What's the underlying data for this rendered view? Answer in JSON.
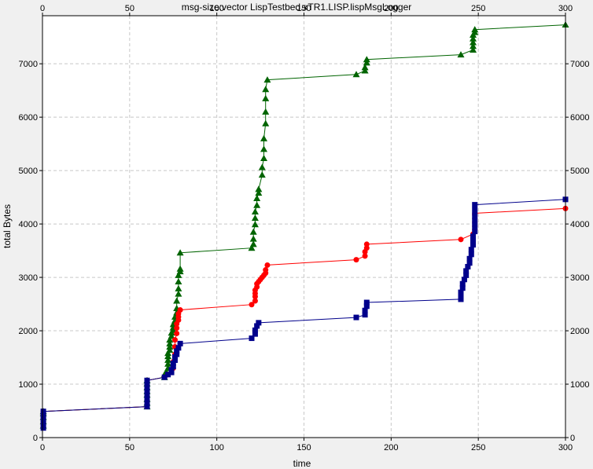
{
  "chart_data": {
    "type": "line",
    "title": "msg-size:vector LispTestbed.xTR1.LISP.lispMsgLogger",
    "xlabel": "time",
    "ylabel": "total Bytes",
    "xlim": [
      0,
      300
    ],
    "ylim": [
      0,
      7900
    ],
    "x_ticks": [
      0,
      50,
      100,
      150,
      200,
      250,
      300
    ],
    "y_ticks": [
      0,
      1000,
      2000,
      3000,
      4000,
      5000,
      6000,
      7000
    ],
    "grid": true,
    "legend": "none",
    "series": [
      {
        "color": "#006400",
        "marker": "triangle",
        "points": [
          [
            0.5,
            220
          ],
          [
            0.5,
            300
          ],
          [
            0.5,
            380
          ],
          [
            0.5,
            450
          ],
          [
            0.5,
            490
          ],
          [
            60,
            580
          ],
          [
            60,
            650
          ],
          [
            60,
            720
          ],
          [
            60,
            800
          ],
          [
            60,
            870
          ],
          [
            60,
            940
          ],
          [
            60,
            1010
          ],
          [
            60,
            1070
          ],
          [
            70,
            1130
          ],
          [
            70,
            1180
          ],
          [
            71,
            1230
          ],
          [
            72,
            1300
          ],
          [
            72,
            1380
          ],
          [
            72,
            1450
          ],
          [
            72,
            1520
          ],
          [
            72,
            1580
          ],
          [
            73,
            1640
          ],
          [
            73,
            1700
          ],
          [
            73,
            1760
          ],
          [
            73,
            1830
          ],
          [
            74,
            1900
          ],
          [
            74,
            1960
          ],
          [
            75,
            2010
          ],
          [
            75,
            2060
          ],
          [
            75,
            2120
          ],
          [
            76,
            2190
          ],
          [
            76,
            2260
          ],
          [
            77,
            2340
          ],
          [
            77,
            2420
          ],
          [
            77,
            2560
          ],
          [
            78,
            2690
          ],
          [
            78,
            2790
          ],
          [
            78,
            2920
          ],
          [
            78,
            3040
          ],
          [
            79,
            3110
          ],
          [
            79,
            3160
          ],
          [
            79,
            3460
          ],
          [
            120,
            3550
          ],
          [
            121,
            3620
          ],
          [
            121,
            3720
          ],
          [
            121,
            3850
          ],
          [
            122,
            3990
          ],
          [
            122,
            4110
          ],
          [
            122,
            4230
          ],
          [
            123,
            4350
          ],
          [
            123,
            4480
          ],
          [
            124,
            4580
          ],
          [
            124,
            4650
          ],
          [
            126,
            4920
          ],
          [
            126,
            5060
          ],
          [
            127,
            5230
          ],
          [
            127,
            5400
          ],
          [
            127,
            5600
          ],
          [
            128,
            5880
          ],
          [
            128,
            6100
          ],
          [
            128,
            6350
          ],
          [
            128,
            6520
          ],
          [
            129,
            6700
          ],
          [
            180,
            6800
          ],
          [
            185,
            6870
          ],
          [
            185,
            6930
          ],
          [
            186,
            7020
          ],
          [
            186,
            7080
          ],
          [
            240,
            7170
          ],
          [
            247,
            7260
          ],
          [
            247,
            7330
          ],
          [
            247,
            7400
          ],
          [
            247,
            7470
          ],
          [
            247,
            7540
          ],
          [
            248,
            7590
          ],
          [
            248,
            7640
          ],
          [
            300,
            7730
          ]
        ]
      },
      {
        "color": "#ff0000",
        "marker": "circle",
        "points": [
          [
            0.5,
            200
          ],
          [
            0.5,
            280
          ],
          [
            0.5,
            360
          ],
          [
            0.5,
            430
          ],
          [
            0.5,
            490
          ],
          [
            60,
            580
          ],
          [
            60,
            650
          ],
          [
            60,
            720
          ],
          [
            60,
            800
          ],
          [
            60,
            870
          ],
          [
            60,
            940
          ],
          [
            60,
            1010
          ],
          [
            60,
            1070
          ],
          [
            70,
            1130
          ],
          [
            72,
            1180
          ],
          [
            74,
            1220
          ],
          [
            75,
            1300
          ],
          [
            75,
            1420
          ],
          [
            76,
            1560
          ],
          [
            76,
            1700
          ],
          [
            76,
            1830
          ],
          [
            77,
            1950
          ],
          [
            77,
            2050
          ],
          [
            77,
            2130
          ],
          [
            78,
            2200
          ],
          [
            78,
            2260
          ],
          [
            78,
            2320
          ],
          [
            79,
            2390
          ],
          [
            120,
            2490
          ],
          [
            122,
            2560
          ],
          [
            122,
            2640
          ],
          [
            122,
            2700
          ],
          [
            122,
            2760
          ],
          [
            123,
            2820
          ],
          [
            123,
            2880
          ],
          [
            124,
            2920
          ],
          [
            125,
            2960
          ],
          [
            126,
            3000
          ],
          [
            127,
            3040
          ],
          [
            128,
            3080
          ],
          [
            128,
            3140
          ],
          [
            129,
            3230
          ],
          [
            180,
            3330
          ],
          [
            185,
            3400
          ],
          [
            185,
            3480
          ],
          [
            186,
            3550
          ],
          [
            186,
            3620
          ],
          [
            240,
            3710
          ],
          [
            247,
            3810
          ],
          [
            248,
            3890
          ],
          [
            248,
            3960
          ],
          [
            248,
            4030
          ],
          [
            248,
            4100
          ],
          [
            248,
            4170
          ],
          [
            248,
            4200
          ],
          [
            300,
            4290
          ]
        ]
      },
      {
        "color": "#00008b",
        "marker": "square",
        "points": [
          [
            0.5,
            180
          ],
          [
            0.5,
            260
          ],
          [
            0.5,
            340
          ],
          [
            0.5,
            420
          ],
          [
            0.5,
            490
          ],
          [
            60,
            580
          ],
          [
            60,
            650
          ],
          [
            60,
            720
          ],
          [
            60,
            800
          ],
          [
            60,
            870
          ],
          [
            60,
            940
          ],
          [
            60,
            1010
          ],
          [
            60,
            1070
          ],
          [
            70,
            1130
          ],
          [
            72,
            1180
          ],
          [
            74,
            1220
          ],
          [
            74,
            1270
          ],
          [
            75,
            1330
          ],
          [
            75,
            1390
          ],
          [
            76,
            1450
          ],
          [
            76,
            1510
          ],
          [
            77,
            1560
          ],
          [
            77,
            1620
          ],
          [
            78,
            1680
          ],
          [
            79,
            1760
          ],
          [
            120,
            1860
          ],
          [
            122,
            1940
          ],
          [
            122,
            2010
          ],
          [
            123,
            2090
          ],
          [
            124,
            2150
          ],
          [
            180,
            2250
          ],
          [
            185,
            2300
          ],
          [
            185,
            2380
          ],
          [
            186,
            2460
          ],
          [
            186,
            2530
          ],
          [
            240,
            2590
          ],
          [
            240,
            2660
          ],
          [
            240,
            2720
          ],
          [
            241,
            2800
          ],
          [
            241,
            2880
          ],
          [
            242,
            2960
          ],
          [
            243,
            3040
          ],
          [
            243,
            3120
          ],
          [
            244,
            3200
          ],
          [
            245,
            3270
          ],
          [
            245,
            3350
          ],
          [
            246,
            3430
          ],
          [
            246,
            3520
          ],
          [
            247,
            3610
          ],
          [
            247,
            3680
          ],
          [
            247,
            3770
          ],
          [
            248,
            3860
          ],
          [
            248,
            3960
          ],
          [
            248,
            4060
          ],
          [
            248,
            4160
          ],
          [
            248,
            4260
          ],
          [
            248,
            4360
          ],
          [
            300,
            4460
          ]
        ]
      }
    ]
  }
}
